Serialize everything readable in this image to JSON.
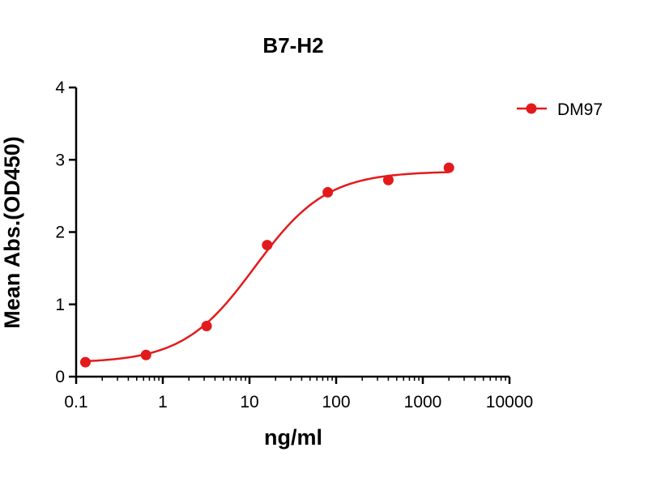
{
  "chart_data": {
    "type": "scatter",
    "title": "B7-H2",
    "xlabel": "ng/ml",
    "ylabel": "Mean Abs.(OD450)",
    "xscale": "log",
    "xlim": [
      0.1,
      10000
    ],
    "ylim": [
      0,
      4
    ],
    "xticks": [
      0.1,
      1,
      10,
      100,
      1000,
      10000
    ],
    "xtick_labels": [
      "0.1",
      "1",
      "10",
      "100",
      "1000",
      "10000"
    ],
    "yticks": [
      0,
      1,
      2,
      3,
      4
    ],
    "ytick_labels": [
      "0",
      "1",
      "2",
      "3",
      "4"
    ],
    "grid": false,
    "legend_position": "top-right",
    "series": [
      {
        "name": "DM97",
        "color": "#e31a1c",
        "marker": "circle",
        "fit": "sigmoidal 4PL",
        "x": [
          0.128,
          0.64,
          3.2,
          16,
          80,
          400,
          2000
        ],
        "y": [
          0.2,
          0.3,
          0.7,
          1.82,
          2.55,
          2.72,
          2.89
        ]
      }
    ]
  }
}
